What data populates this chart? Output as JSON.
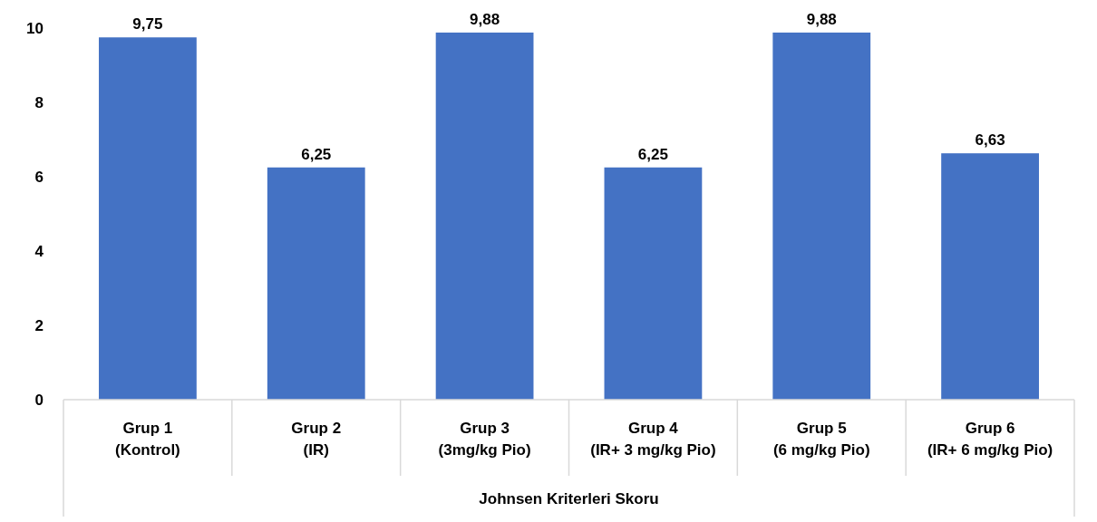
{
  "chart_data": {
    "type": "bar",
    "xlabel": "Johnsen Kriterleri Skoru",
    "categories": [
      "Grup 1\n(Kontrol)",
      "Grup 2\n(IR)",
      "Grup 3\n(3mg/kg Pio)",
      "Grup 4\n(IR+ 3 mg/kg Pio)",
      "Grup 5\n(6 mg/kg Pio)",
      "Grup 6\n(IR+ 6 mg/kg Pio)"
    ],
    "values": [
      9.75,
      6.25,
      9.88,
      6.25,
      9.88,
      6.63
    ],
    "value_labels": [
      "9,75",
      "6,25",
      "9,88",
      "6,25",
      "9,88",
      "6,63"
    ],
    "color": "#4472c4",
    "ylim": [
      0,
      10
    ],
    "yticks": [
      0,
      2,
      4,
      6,
      8,
      10
    ],
    "grid": false
  }
}
